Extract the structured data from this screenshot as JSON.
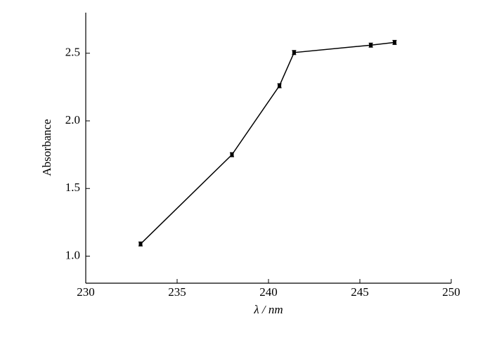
{
  "chart_data": {
    "type": "line",
    "x_label": "λ / nm",
    "y_label": "Absorbance",
    "x": [
      233.0,
      238.0,
      240.6,
      241.4,
      245.6,
      246.9
    ],
    "series": [
      {
        "color": "#000000",
        "values": [
          1.09,
          1.75,
          2.26,
          2.505,
          2.56,
          2.58
        ],
        "errors": [
          0.015,
          0.015,
          0.015,
          0.015,
          0.015,
          0.015
        ]
      }
    ],
    "xlim": [
      230,
      250
    ],
    "xticks": [
      230,
      235,
      240,
      245,
      250
    ],
    "ylim": [
      0.8,
      2.8
    ],
    "yticks": [
      {
        "value": 1,
        "label": "1.0"
      },
      1.5,
      {
        "value": 2,
        "label": "2.0"
      },
      2.5
    ]
  }
}
